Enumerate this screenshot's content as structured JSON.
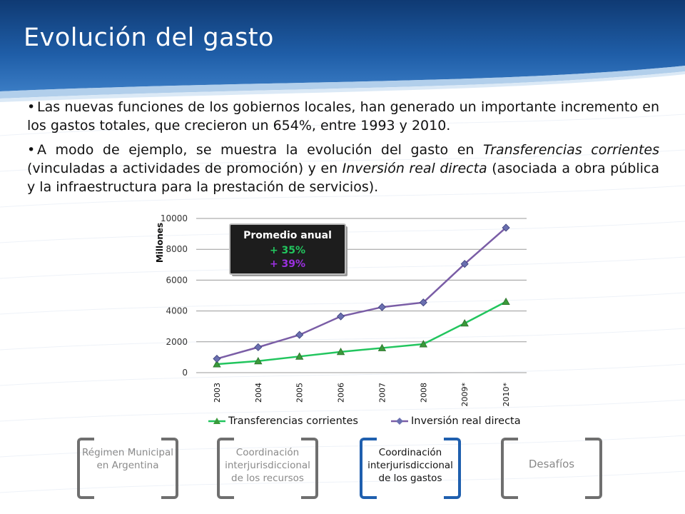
{
  "slide": {
    "title": "Evolución del gasto",
    "bullets": [
      {
        "segments": [
          {
            "text": "Las nuevas funciones de los gobiernos locales, han generado un importante incremento en los gastos totales, que crecieron un 654%, entre 1993 y 2010.",
            "italic": false
          }
        ]
      },
      {
        "segments": [
          {
            "text": "A modo de ejemplo, se muestra la evolución del gasto en ",
            "italic": false
          },
          {
            "text": "Transferencias corrientes",
            "italic": true
          },
          {
            "text": " (vinculadas a actividades de promoción) y en ",
            "italic": false
          },
          {
            "text": "Inversión real directa",
            "italic": true
          },
          {
            "text": " (asociada a obra pública y la infraestructura para la prestación de servicios).",
            "italic": false
          }
        ]
      }
    ]
  },
  "chart_data": {
    "type": "line",
    "categories": [
      "2003",
      "2004",
      "2005",
      "2006",
      "2007",
      "2008",
      "2009*",
      "2010*"
    ],
    "ylabel": "Millones",
    "ylim": [
      0,
      10000
    ],
    "yticks": [
      0,
      2000,
      4000,
      6000,
      8000,
      10000
    ],
    "grid": true,
    "legend_position": "bottom",
    "series": [
      {
        "name": "Transferencias corrientes",
        "color": "#22c55e",
        "marker": "triangle",
        "values": [
          550,
          750,
          1050,
          1350,
          1600,
          1850,
          3200,
          4600
        ]
      },
      {
        "name": "Inversión real directa",
        "color": "#7a5da6",
        "marker": "diamond",
        "values": [
          900,
          1650,
          2450,
          3650,
          4250,
          4550,
          7050,
          9400
        ]
      }
    ],
    "annotation": {
      "title": "Promedio anual",
      "lines": [
        {
          "text": "+ 35%",
          "color": "#22c55e"
        },
        {
          "text": "+ 39%",
          "color": "#9b30e0"
        }
      ]
    }
  },
  "nav": [
    {
      "label": "Régimen Municipal en Argentina",
      "active": false
    },
    {
      "label": "Coordinación interjurisdiccional de los recursos",
      "active": false
    },
    {
      "label": "Coordinación interjurisdiccional de los gastos",
      "active": true
    },
    {
      "label": "Desafíos",
      "active": false
    }
  ],
  "colors": {
    "header_dark": "#123f7a",
    "header_mid": "#2b6db3",
    "active_bracket": "#1f5fae",
    "inactive_bracket": "#6f6f6f"
  }
}
